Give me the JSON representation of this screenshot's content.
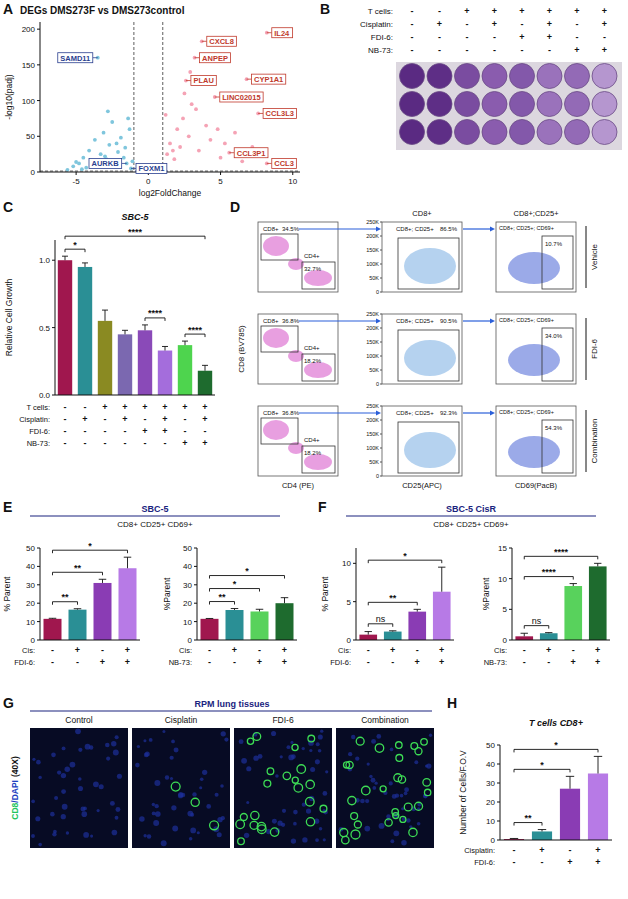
{
  "chart_data": [
    {
      "type": "scatter",
      "panel": "A",
      "title": "DEGs DMS273F vs DMS273control",
      "x_label": "log2FoldChange",
      "y_label": "-log10(padj)",
      "xlim": [
        -7.5,
        10.5
      ],
      "ylim": [
        0,
        210
      ],
      "xticks": [
        -5,
        0,
        5,
        10
      ],
      "yticks": [
        0,
        50,
        100,
        150,
        200
      ],
      "vlines": [
        -1,
        1
      ],
      "hlines": [
        1.3
      ],
      "series": [
        {
          "color": "#7fc6dd",
          "x": [
            -5.6,
            -5.2,
            -4.8,
            -4.5,
            -4.3,
            -4.1,
            -3.9,
            -3.7,
            -3.5,
            -3.3,
            -3.1,
            -2.9,
            -2.7,
            -2.5,
            -2.3,
            -2.1,
            -1.9,
            -1.7,
            -1.5,
            -1.3,
            -1.2,
            -1.1,
            -2.8,
            -3.6,
            -4.6,
            -1.6,
            -2.2,
            -3.0,
            -1.4,
            -5.0
          ],
          "values": [
            3,
            8,
            12,
            20,
            6,
            30,
            15,
            45,
            160,
            25,
            55,
            18,
            38,
            70,
            10,
            28,
            48,
            20,
            12,
            60,
            5,
            15,
            85,
            9,
            4,
            34,
            40,
            22,
            75,
            14
          ]
        },
        {
          "color": "#f5a3b5",
          "x": [
            1.1,
            1.3,
            1.5,
            1.8,
            2.0,
            2.2,
            2.4,
            2.6,
            2.8,
            3.0,
            3.2,
            3.5,
            3.7,
            4.0,
            4.3,
            4.6,
            5.0,
            5.3,
            5.6,
            6.0,
            6.5,
            6.8,
            7.2,
            7.6,
            8.2,
            8.2,
            2.5,
            3.3,
            1.7,
            4.8,
            1.2,
            2.9
          ],
          "values": [
            10,
            25,
            40,
            18,
            60,
            35,
            75,
            128,
            50,
            95,
            160,
            30,
            183,
            65,
            45,
            105,
            20,
            40,
            27,
            55,
            15,
            130,
            35,
            82,
            12,
            195,
            110,
            88,
            30,
            60,
            80,
            140
          ]
        }
      ],
      "annotations": [
        {
          "text": "SAMD11",
          "x": -3.5,
          "y": 160,
          "color": "#2a3f8f"
        },
        {
          "text": "AURKB",
          "x": -1.5,
          "y": 12,
          "color": "#2a3f8f"
        },
        {
          "text": "FOXM1",
          "x": -1.2,
          "y": 5,
          "color": "#2a3f8f"
        },
        {
          "text": "IL24",
          "x": 8.2,
          "y": 195,
          "color": "#c0392b"
        },
        {
          "text": "CXCL8",
          "x": 3.7,
          "y": 183,
          "color": "#c0392b"
        },
        {
          "text": "ANPEP",
          "x": 3.2,
          "y": 160,
          "color": "#c0392b"
        },
        {
          "text": "CYP1A1",
          "x": 6.8,
          "y": 130,
          "color": "#c0392b"
        },
        {
          "text": "PLAU",
          "x": 2.6,
          "y": 128,
          "color": "#c0392b"
        },
        {
          "text": "LINC02015",
          "x": 4.6,
          "y": 105,
          "color": "#c0392b"
        },
        {
          "text": "CCL3L3",
          "x": 7.6,
          "y": 82,
          "color": "#c0392b"
        },
        {
          "text": "CCL3P1",
          "x": 5.6,
          "y": 27,
          "color": "#c0392b"
        },
        {
          "text": "CCL3",
          "x": 8.2,
          "y": 12,
          "color": "#c0392b"
        }
      ]
    },
    {
      "type": "bar",
      "panel": "C",
      "title": "SBC-5",
      "y_label": "Relative Cell Growth",
      "ylim": [
        0,
        1.15
      ],
      "yticks": [
        {
          "value": 0,
          "label": "0.0"
        },
        {
          "value": 0.5,
          "label": "0.5"
        },
        {
          "value": 1,
          "label": "1.0"
        }
      ],
      "values": [
        1.0,
        0.95,
        0.55,
        0.45,
        0.48,
        0.33,
        0.37,
        0.18
      ],
      "errors": [
        0.03,
        0.03,
        0.08,
        0.03,
        0.04,
        0.03,
        0.03,
        0.04
      ],
      "colors": [
        "#a0174e",
        "#2a8f95",
        "#8a8a22",
        "#7b68b0",
        "#8a4ab8",
        "#a46ddc",
        "#4ed44e",
        "#1e6b2e"
      ],
      "conditions": [
        {
          "label": "T cells:",
          "signs": [
            "-",
            "-",
            "+",
            "+",
            "+",
            "+",
            "+",
            "+"
          ]
        },
        {
          "label": "Cisplatin:",
          "signs": [
            "-",
            "+",
            "-",
            "+",
            "-",
            "+",
            "-",
            "+"
          ]
        },
        {
          "label": "FDI-6:",
          "signs": [
            "-",
            "-",
            "-",
            "-",
            "+",
            "+",
            "-",
            "-"
          ]
        },
        {
          "label": "NB-73:",
          "signs": [
            "-",
            "-",
            "-",
            "-",
            "-",
            "-",
            "+",
            "+"
          ]
        }
      ],
      "annotations": [
        {
          "text": "*",
          "from": 0,
          "to": 1
        },
        {
          "text": "****",
          "from": 0,
          "to": 7
        },
        {
          "text": "****",
          "from": 4,
          "to": 5
        },
        {
          "text": "****",
          "from": 6,
          "to": 7
        }
      ]
    },
    {
      "type": "bar",
      "panel": "E",
      "title": "SBC-5",
      "subtitle": "CD8+ CD25+ CD69+",
      "y_label": "% Parent",
      "ylim": [
        0,
        50
      ],
      "yticks": [
        0,
        10,
        20,
        30,
        40,
        50
      ],
      "values": [
        11.5,
        16.5,
        31,
        39
      ],
      "errors": [
        0.3,
        0.5,
        2,
        6
      ],
      "colors": [
        "#a0174e",
        "#2a8f95",
        "#8a3cb4",
        "#b77ae6"
      ],
      "conditions": [
        {
          "label": "Cis:",
          "signs": [
            "-",
            "+",
            "-",
            "+"
          ]
        },
        {
          "label": "FDI-6:",
          "signs": [
            "-",
            "-",
            "+",
            "+"
          ]
        }
      ],
      "annotations": [
        {
          "text": "**",
          "from": 0,
          "to": 1
        },
        {
          "text": "**",
          "from": 0,
          "to": 2
        },
        {
          "text": "*",
          "from": 0,
          "to": 3
        }
      ]
    },
    {
      "type": "bar",
      "y_label": "%Parent",
      "ylim": [
        0,
        50
      ],
      "yticks": [
        0,
        10,
        20,
        30,
        40,
        50
      ],
      "values": [
        11.5,
        16.3,
        15.5,
        20
      ],
      "errors": [
        0.2,
        0.8,
        1.2,
        3
      ],
      "colors": [
        "#a0174e",
        "#2a8f95",
        "#58d25c",
        "#1e6b2e"
      ],
      "conditions": [
        {
          "label": "Cis:",
          "signs": [
            "-",
            "+",
            "-",
            "+"
          ]
        },
        {
          "label": "NB-73:",
          "signs": [
            "-",
            "-",
            "+",
            "+"
          ]
        }
      ],
      "annotations": [
        {
          "text": "**",
          "from": 0,
          "to": 1
        },
        {
          "text": "*",
          "from": 0,
          "to": 2
        },
        {
          "text": "*",
          "from": 0,
          "to": 3
        }
      ]
    },
    {
      "type": "bar",
      "panel": "F",
      "title": "SBC-5 CisR",
      "subtitle": "CD8+ CD25+ CD69+",
      "y_label": "% Parent",
      "ylim": [
        0,
        12
      ],
      "yticks": [
        0,
        5,
        10
      ],
      "values": [
        0.7,
        1.1,
        3.7,
        6.3
      ],
      "errors": [
        0.4,
        0.1,
        0.3,
        3.2
      ],
      "colors": [
        "#a0174e",
        "#2a8f95",
        "#8a3cb4",
        "#b77ae6"
      ],
      "conditions": [
        {
          "label": "Cis:",
          "signs": [
            "-",
            "+",
            "-",
            "+"
          ]
        },
        {
          "label": "FDI-6:",
          "signs": [
            "-",
            "-",
            "+",
            "+"
          ]
        }
      ],
      "annotations": [
        {
          "text": "ns",
          "from": 0,
          "to": 1
        },
        {
          "text": "**",
          "from": 0,
          "to": 2
        },
        {
          "text": "*",
          "from": 0,
          "to": 3
        }
      ]
    },
    {
      "type": "bar",
      "y_label": "%Parent",
      "ylim": [
        0,
        15
      ],
      "yticks": [
        0,
        5,
        10,
        15
      ],
      "values": [
        0.6,
        1.1,
        8.8,
        12
      ],
      "errors": [
        0.5,
        0.1,
        0.4,
        0.5
      ],
      "colors": [
        "#a0174e",
        "#2a8f95",
        "#58d25c",
        "#1e6b2e"
      ],
      "conditions": [
        {
          "label": "Cis:",
          "signs": [
            "-",
            "+",
            "-",
            "+"
          ]
        },
        {
          "label": "NB-73:",
          "signs": [
            "-",
            "-",
            "+",
            "+"
          ]
        }
      ],
      "annotations": [
        {
          "text": "ns",
          "from": 0,
          "to": 1
        },
        {
          "text": "****",
          "from": 0,
          "to": 2
        },
        {
          "text": "****",
          "from": 0,
          "to": 3
        }
      ]
    },
    {
      "type": "bar",
      "panel": "H",
      "title": "T cells CD8+",
      "y_label": "Number of Cells/F.O.V",
      "ylim": [
        0,
        50
      ],
      "yticks": [
        0,
        10,
        20,
        30,
        40,
        50
      ],
      "values": [
        0.5,
        4.5,
        27,
        35
      ],
      "errors": [
        0.3,
        1,
        6.5,
        9
      ],
      "colors": [
        "#a0174e",
        "#2a8f95",
        "#8a3cb4",
        "#b77ae6"
      ],
      "conditions": [
        {
          "label": "Cisplatin:",
          "signs": [
            "-",
            "+",
            "-",
            "+"
          ]
        },
        {
          "label": "FDI-6:",
          "signs": [
            "-",
            "-",
            "+",
            "+"
          ]
        }
      ],
      "annotations": [
        {
          "text": "**",
          "from": 0,
          "to": 1
        },
        {
          "text": "*",
          "from": 0,
          "to": 2
        },
        {
          "text": "*",
          "from": 0,
          "to": 3
        }
      ]
    }
  ],
  "plate": {
    "panel": "B",
    "conditions": [
      {
        "label": "T cells:",
        "signs": [
          "-",
          "-",
          "+",
          "+",
          "+",
          "+",
          "+",
          "+"
        ]
      },
      {
        "label": "Cisplatin:",
        "signs": [
          "-",
          "+",
          "-",
          "+",
          "-",
          "+",
          "-",
          "+"
        ]
      },
      {
        "label": "FDI-6:",
        "signs": [
          "-",
          "-",
          "-",
          "-",
          "+",
          "+",
          "-",
          "-"
        ]
      },
      {
        "label": "NB-73:",
        "signs": [
          "-",
          "-",
          "-",
          "-",
          "-",
          "-",
          "+",
          "+"
        ]
      }
    ],
    "well_colors": [
      "#5a2a82",
      "#5e2e86",
      "#7a4ca0",
      "#8a5cae",
      "#8358aa",
      "#9a72bb",
      "#936ab6",
      "#b596cf"
    ]
  },
  "flow": {
    "panel": "D",
    "y_label": "CD8 (BV785)",
    "x_labels": [
      "CD4 (PE)",
      "CD25(APC)",
      "CD69(PacB)"
    ],
    "column_titles": [
      "CD8+",
      "CD8+;CD25+"
    ],
    "yticks": [
      "0",
      "50K",
      "100K",
      "150K",
      "200K",
      "250K"
    ],
    "gates": [
      "CD8+",
      "CD4+",
      "CD8+; CD25+",
      "CD8+; CD25+; CD69+"
    ],
    "rows": [
      {
        "label": "Vehicle",
        "values": [
          "34.5%",
          "32.7%",
          "86.5%",
          "10.7%"
        ]
      },
      {
        "label": "FDI-6",
        "values": [
          "36.8%",
          "18.2%",
          "90.5%",
          "34.0%"
        ]
      },
      {
        "label": "Combination",
        "values": [
          "36.8%",
          "18.2%",
          "92.3%",
          "54.3%"
        ]
      }
    ]
  },
  "microscopy": {
    "panel": "G",
    "title": "RPM lung tissues",
    "channels": [
      {
        "text": "CD8",
        "color": "#22c55e"
      },
      {
        "text": "/DAPI",
        "color": "#2040c0"
      }
    ],
    "magnification": "(40X)",
    "images": [
      "Control",
      "Cisplatin",
      "FDI-6",
      "Combination"
    ]
  }
}
